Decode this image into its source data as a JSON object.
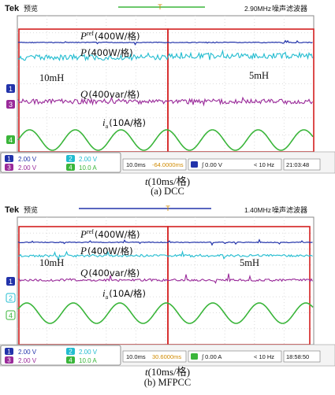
{
  "scope_a": {
    "brand": "Tek",
    "mode": "预览",
    "sample_rate": "2.90MHz",
    "filter": "噪声滤波器",
    "labels": {
      "pref_sym": "P",
      "pref_sup": "ref",
      "pref_scale": "(400W/格)",
      "p_sym": "P",
      "p_scale": "(400W/格)",
      "q_sym": "Q",
      "q_scale": "(400var/格)",
      "i_sym": "i",
      "i_sub": "a",
      "i_scale": "(10A/格)",
      "left_inductor": "10mH",
      "right_inductor": "5mH"
    },
    "channels": [
      {
        "num": "1",
        "scale": "2.00 V"
      },
      {
        "num": "2",
        "scale": "2.00 V"
      },
      {
        "num": "3",
        "scale": "2.00 V"
      },
      {
        "num": "4",
        "scale": "10.0 A"
      }
    ],
    "markers": [
      "1",
      "3",
      "4"
    ],
    "timebase": "10.0ms",
    "offset": "-64.0000ms",
    "trigger": "0.00 V",
    "freq": "< 10 Hz",
    "clock": "21:03:48"
  },
  "scope_b": {
    "brand": "Tek",
    "mode": "预览",
    "sample_rate": "1.40MHz",
    "filter": "噪声滤波器",
    "labels": {
      "pref_sym": "P",
      "pref_sup": "ref",
      "pref_scale": "(400W/格)",
      "p_sym": "P",
      "p_scale": "(400W/格)",
      "q_sym": "Q",
      "q_scale": "(400var/格)",
      "i_sym": "i",
      "i_sub": "a",
      "i_scale": "(10A/格)",
      "left_inductor": "10mH",
      "right_inductor": "5mH"
    },
    "channels": [
      {
        "num": "1",
        "scale": "2.00 V"
      },
      {
        "num": "2",
        "scale": "2.00 V"
      },
      {
        "num": "3",
        "scale": "2.00 V"
      },
      {
        "num": "4",
        "scale": "10.0 A"
      }
    ],
    "markers": [
      "1",
      "2",
      "4"
    ],
    "timebase": "10.0ms",
    "offset": "30.6000ms",
    "trigger": "0.00 A",
    "freq": "< 10 Hz",
    "clock": "18:58:50"
  },
  "captions": {
    "time_sym": "t",
    "time_unit": "(10ms/格)",
    "a": "(a)  DCC",
    "b": "(b)  MFPCC"
  },
  "colors": {
    "ch1": "#2233aa",
    "ch2": "#22bcd0",
    "ch3": "#9a2a9a",
    "ch4": "#3ab53a",
    "box": "#d42020",
    "grid": "#c8c8c8"
  }
}
